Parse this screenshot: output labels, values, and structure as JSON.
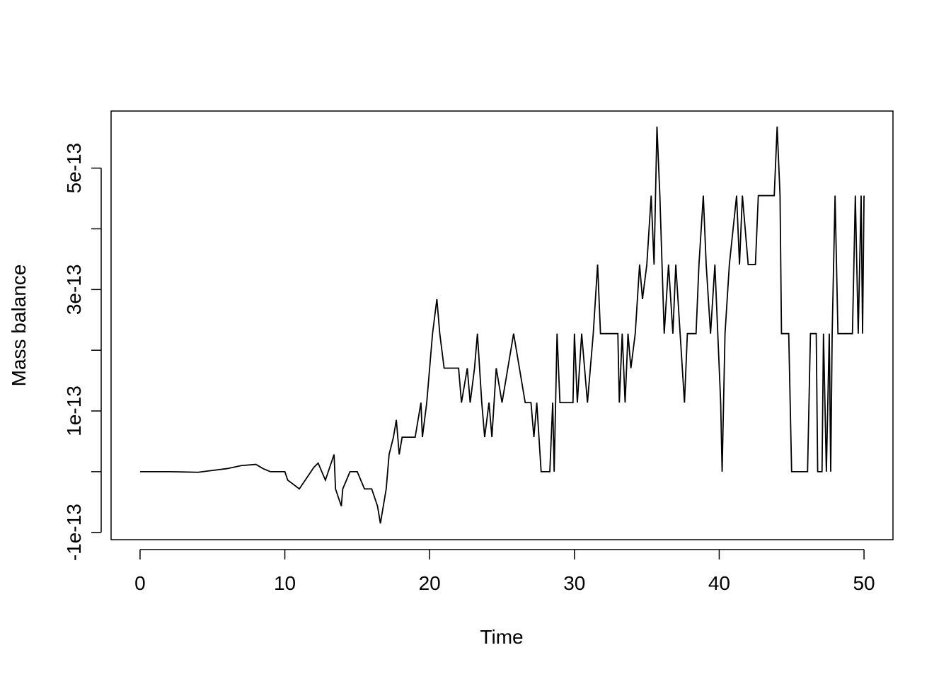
{
  "chart_data": {
    "type": "line",
    "xlabel": "Time",
    "ylabel": "Mass balance",
    "x": [
      0,
      2,
      4,
      5,
      6,
      7,
      8,
      8.5,
      9,
      10,
      10.2,
      11,
      12,
      12.3,
      12.8,
      13.4,
      13.5,
      13.9,
      14,
      14.5,
      15,
      15.5,
      16,
      16.4,
      16.6,
      16.8,
      17,
      17.2,
      17.5,
      17.7,
      17.9,
      18.1,
      19,
      19.4,
      19.5,
      19.8,
      20.2,
      20.5,
      20.7,
      21,
      22,
      22.2,
      22.6,
      22.8,
      23.1,
      23.3,
      23.6,
      23.8,
      24.1,
      24.3,
      24.6,
      25,
      25.4,
      25.8,
      26.2,
      26.6,
      27,
      27.2,
      27.4,
      27.7,
      28.3,
      28.5,
      28.6,
      28.8,
      29,
      29.9,
      30,
      30.2,
      30.5,
      30.9,
      31.3,
      31.6,
      31.8,
      33,
      33.1,
      33.3,
      33.5,
      33.7,
      33.9,
      34.2,
      34.5,
      34.7,
      35,
      35.3,
      35.5,
      35.7,
      35.9,
      36.2,
      36.5,
      36.8,
      37,
      37.3,
      37.6,
      37.8,
      38.4,
      38.6,
      38.9,
      39.1,
      39.4,
      39.7,
      39.9,
      40.1,
      40.2,
      40.4,
      40.7,
      41.2,
      41.4,
      41.6,
      42,
      42.5,
      42.7,
      43.8,
      44,
      44.2,
      44.3,
      44.8,
      45,
      46.1,
      46.3,
      46.7,
      46.8,
      47.1,
      47.2,
      47.4,
      47.6,
      47.7,
      47.8,
      48,
      48.2,
      49.2,
      49.4,
      49.6,
      49.8,
      49.9,
      50
    ],
    "values": [
      0,
      0,
      -1e-15,
      2e-15,
      5e-15,
      1e-14,
      1.2e-14,
      5e-15,
      0,
      0,
      -1.4e-14,
      -2.84e-14,
      7e-15,
      1.42e-14,
      -1.4e-14,
      2.84e-14,
      -2.84e-14,
      -5.68e-14,
      -2.84e-14,
      0,
      0,
      -2.84e-14,
      -2.84e-14,
      -5.68e-14,
      -8.53e-14,
      -5.68e-14,
      -2.84e-14,
      2.84e-14,
      5.68e-14,
      8.53e-14,
      2.84e-14,
      5.68e-14,
      5.68e-14,
      1.137e-13,
      5.68e-14,
      1.137e-13,
      2.274e-13,
      2.842e-13,
      2.274e-13,
      1.705e-13,
      1.705e-13,
      1.137e-13,
      1.705e-13,
      1.137e-13,
      1.705e-13,
      2.274e-13,
      1.137e-13,
      5.68e-14,
      1.137e-13,
      5.68e-14,
      1.705e-13,
      1.137e-13,
      1.705e-13,
      2.274e-13,
      1.705e-13,
      1.137e-13,
      1.137e-13,
      5.68e-14,
      1.137e-13,
      0,
      0,
      1.137e-13,
      0,
      2.274e-13,
      1.137e-13,
      1.137e-13,
      2.274e-13,
      1.137e-13,
      2.274e-13,
      1.137e-13,
      2.274e-13,
      3.411e-13,
      2.274e-13,
      2.274e-13,
      1.137e-13,
      2.274e-13,
      1.137e-13,
      2.274e-13,
      1.705e-13,
      2.274e-13,
      3.411e-13,
      2.842e-13,
      3.411e-13,
      4.547e-13,
      3.411e-13,
      5.684e-13,
      4.547e-13,
      2.274e-13,
      3.411e-13,
      2.274e-13,
      3.411e-13,
      2.274e-13,
      1.137e-13,
      2.274e-13,
      2.274e-13,
      3.411e-13,
      4.547e-13,
      3.411e-13,
      2.274e-13,
      3.411e-13,
      2.274e-13,
      1.137e-13,
      0,
      2.274e-13,
      3.411e-13,
      4.547e-13,
      3.411e-13,
      4.547e-13,
      3.411e-13,
      3.411e-13,
      4.547e-13,
      4.547e-13,
      5.684e-13,
      4.547e-13,
      2.274e-13,
      2.274e-13,
      0,
      0,
      2.274e-13,
      2.274e-13,
      0,
      0,
      2.274e-13,
      0,
      2.274e-13,
      0,
      2.274e-13,
      4.547e-13,
      2.274e-13,
      2.274e-13,
      4.547e-13,
      2.274e-13,
      4.547e-13,
      2.274e-13,
      4.547e-13
    ],
    "color": "#000000",
    "xlim": [
      -2,
      52
    ],
    "xticks": [
      0,
      10,
      20,
      30,
      40,
      50
    ],
    "ylim": [
      -1.12e-13,
      5.94e-13
    ],
    "yticks": [
      {
        "value": -1e-13,
        "label": "-1e-13"
      },
      {
        "value": 0,
        "label": null
      },
      {
        "value": 1e-13,
        "label": "1e-13"
      },
      {
        "value": 2e-13,
        "label": null
      },
      {
        "value": 3e-13,
        "label": "3e-13"
      },
      {
        "value": 4e-13,
        "label": null
      },
      {
        "value": 5e-13,
        "label": "5e-13"
      }
    ],
    "grid": false
  }
}
